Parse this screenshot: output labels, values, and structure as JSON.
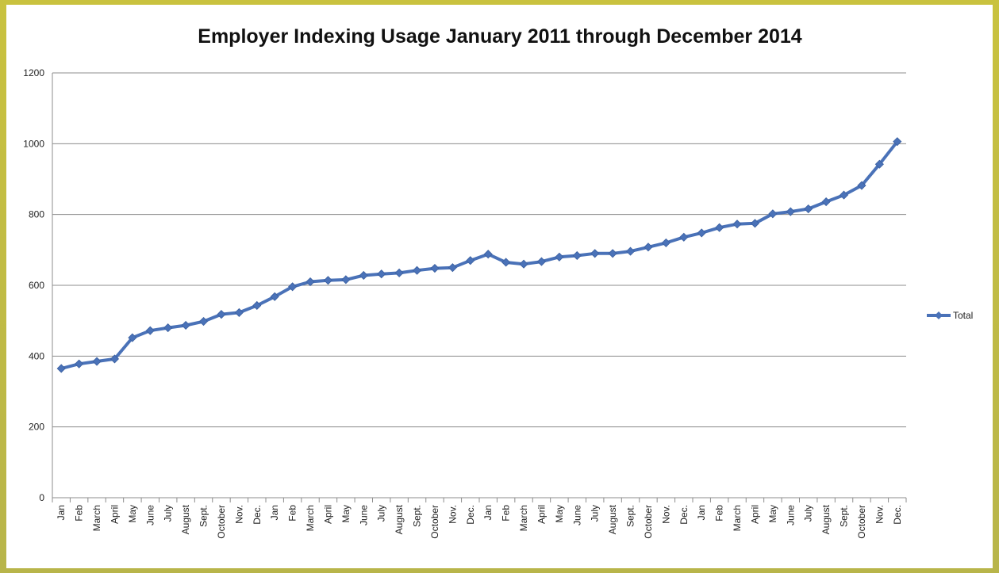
{
  "chart_data": {
    "type": "line",
    "title": "Employer Indexing Usage January 2011 through December 2014",
    "xlabel": "",
    "ylabel": "",
    "ylim": [
      0,
      1200
    ],
    "yticks": [
      0,
      200,
      400,
      600,
      800,
      1000,
      1200
    ],
    "grid": true,
    "legend_position": "right",
    "categories": [
      "Jan",
      "Feb",
      "March",
      "April",
      "May",
      "June",
      "July",
      "August",
      "Sept.",
      "October",
      "Nov.",
      "Dec.",
      "Jan",
      "Feb",
      "March",
      "April",
      "May",
      "June",
      "July",
      "August",
      "Sept.",
      "October",
      "Nov.",
      "Dec.",
      "Jan",
      "Feb",
      "March",
      "April",
      "May",
      "June",
      "July",
      "August",
      "Sept.",
      "October",
      "Nov.",
      "Dec.",
      "Jan",
      "Feb",
      "March",
      "April",
      "May",
      "June",
      "July",
      "August",
      "Sept.",
      "October",
      "Nov.",
      "Dec."
    ],
    "series": [
      {
        "name": "Total",
        "color": "#4a72b8",
        "values": [
          365,
          378,
          385,
          392,
          452,
          472,
          480,
          487,
          498,
          518,
          523,
          543,
          568,
          596,
          610,
          614,
          616,
          628,
          632,
          635,
          642,
          648,
          650,
          670,
          688,
          665,
          660,
          667,
          680,
          684,
          690,
          690,
          696,
          708,
          720,
          736,
          748,
          763,
          773,
          775,
          802,
          808,
          816,
          836,
          855,
          882,
          942,
          1006
        ]
      }
    ]
  }
}
